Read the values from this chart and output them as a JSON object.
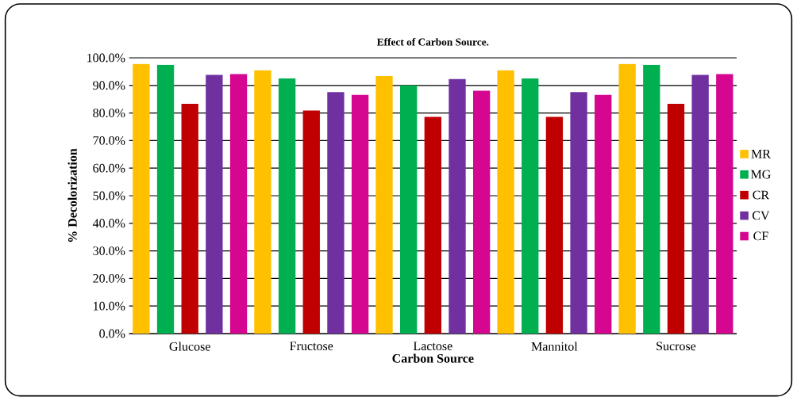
{
  "chart_data": {
    "type": "bar",
    "title": "Effect of Carbon Source.",
    "xlabel": "Carbon Source",
    "ylabel": "% Decolorization",
    "categories": [
      "Glucose",
      "Fructose",
      "Lactose",
      "Mannitol",
      "Sucrose"
    ],
    "series": [
      {
        "name": "MR",
        "color": "#ffc000",
        "values": [
          97.8,
          95.5,
          93.4,
          95.5,
          97.8
        ]
      },
      {
        "name": "MG",
        "color": "#00b050",
        "values": [
          97.5,
          92.5,
          90.0,
          92.5,
          97.5
        ]
      },
      {
        "name": "CR",
        "color": "#c00000",
        "values": [
          83.3,
          80.9,
          78.6,
          78.6,
          83.3
        ]
      },
      {
        "name": "CV",
        "color": "#7030a0",
        "values": [
          93.8,
          87.6,
          92.3,
          87.6,
          93.8
        ]
      },
      {
        "name": "CF",
        "color": "#d5068f",
        "values": [
          94.1,
          86.6,
          88.1,
          86.6,
          94.1
        ]
      }
    ],
    "ylim": [
      0,
      100
    ],
    "yticks": [
      {
        "value": 0,
        "label": "0.0%"
      },
      {
        "value": 10,
        "label": "10.0%"
      },
      {
        "value": 20,
        "label": "20.0%"
      },
      {
        "value": 30,
        "label": "30.0%"
      },
      {
        "value": 40,
        "label": "40.0%"
      },
      {
        "value": 50,
        "label": "50.0%"
      },
      {
        "value": 60,
        "label": "60.0%"
      },
      {
        "value": 70,
        "label": "70.0%"
      },
      {
        "value": 80,
        "label": "80.0%"
      },
      {
        "value": 90,
        "label": "90.0%"
      },
      {
        "value": 100,
        "label": "100.0%"
      }
    ],
    "grid": "y",
    "legend": "right"
  }
}
